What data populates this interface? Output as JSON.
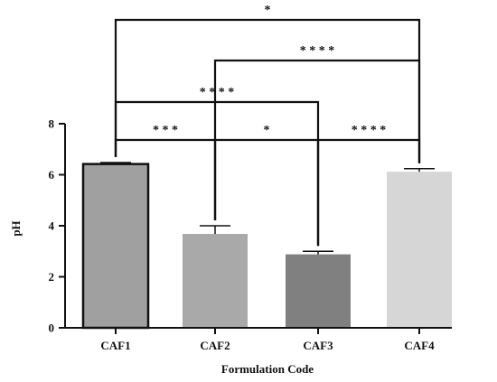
{
  "chart_data": {
    "type": "bar",
    "categories": [
      "CAF1",
      "CAF2",
      "CAF3",
      "CAF4"
    ],
    "values": [
      6.42,
      3.68,
      2.88,
      6.12
    ],
    "errors": [
      0.06,
      0.32,
      0.12,
      0.12
    ],
    "bar_colors": [
      "#a0a0a0",
      "#a9a9a9",
      "#808080",
      "#d6d6d6"
    ],
    "bar_edge": [
      true,
      false,
      false,
      false
    ],
    "xlabel": "Formulation Code",
    "ylabel": "pH",
    "ylim": [
      0,
      8
    ],
    "yticks": [
      0,
      2,
      4,
      6,
      8
    ],
    "grid": false,
    "significance": [
      {
        "from": 0,
        "to": 1,
        "label": "* * *"
      },
      {
        "from": 1,
        "to": 2,
        "label": "*"
      },
      {
        "from": 2,
        "to": 3,
        "label": "* * * *"
      },
      {
        "from": 0,
        "to": 2,
        "label": "* * * *"
      },
      {
        "from": 1,
        "to": 3,
        "label": "* * * *"
      },
      {
        "from": 0,
        "to": 3,
        "label": "*"
      }
    ]
  }
}
